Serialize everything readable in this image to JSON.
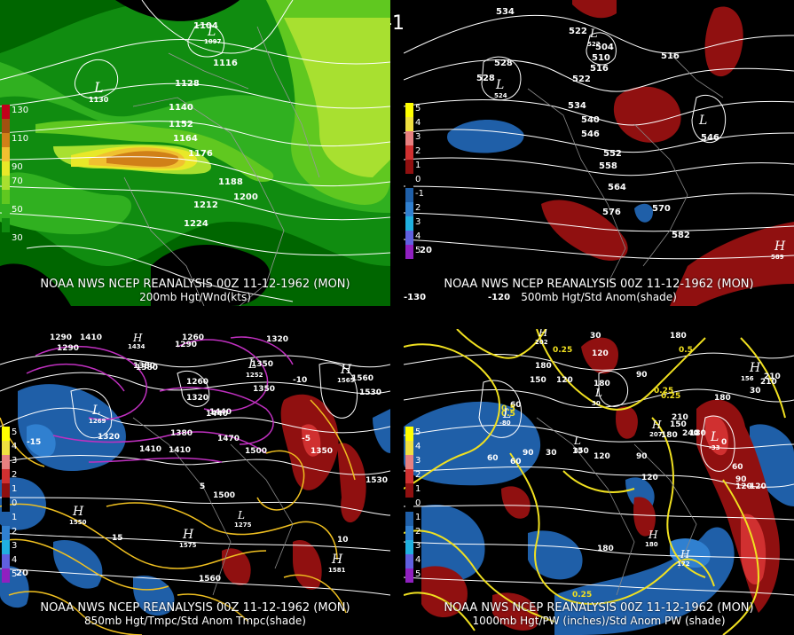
{
  "main_title": "00Z 11-12-1962 (MON)",
  "panels": [
    {
      "id": "p200",
      "caption": "NOAA NWS NCEP REANALYSIS 00Z 11-12-1962 (MON)",
      "subcaption": "200mb Hgt/Wnd(kts)",
      "legend": [
        {
          "label": "130",
          "color": "#c0001a"
        },
        {
          "label": "",
          "color": "#a05010"
        },
        {
          "label": "110",
          "color": "#d08018"
        },
        {
          "label": "",
          "color": "#f0c030"
        },
        {
          "label": "90",
          "color": "#e8e828"
        },
        {
          "label": "70",
          "color": "#a8e030"
        },
        {
          "label": "",
          "color": "#60c820"
        },
        {
          "label": "50",
          "color": "#30b020"
        },
        {
          "label": "",
          "color": "#108c10"
        },
        {
          "label": "30",
          "color": "#006600"
        }
      ],
      "contour_labels": [
        "1104",
        "1116",
        "1128",
        "1140",
        "1152",
        "1164",
        "1176",
        "1188",
        "1200",
        "1212",
        "1224"
      ],
      "lows": [
        {
          "mark": "L",
          "value": "1130"
        },
        {
          "mark": "L",
          "value": "1097"
        }
      ]
    },
    {
      "id": "p500",
      "caption": "NOAA NWS NCEP REANALYSIS 00Z 11-12-1962 (MON)",
      "subcaption": "500mb Hgt/Std Anom(shade)",
      "legend": [
        {
          "label": "5",
          "color": "#ffff00"
        },
        {
          "label": "4",
          "color": "#f0e040"
        },
        {
          "label": "3",
          "color": "#e88080"
        },
        {
          "label": "2",
          "color": "#d03030"
        },
        {
          "label": "1",
          "color": "#901010"
        },
        {
          "label": "0",
          "color": "#000000"
        },
        {
          "label": "-1",
          "color": "#1f5fa8"
        },
        {
          "label": "2",
          "color": "#3080d0"
        },
        {
          "label": "3",
          "color": "#20b0e0"
        },
        {
          "label": "4",
          "color": "#6060e0"
        },
        {
          "label": "5",
          "color": "#9020c0"
        }
      ],
      "contour_labels": [
        "534",
        "528",
        "522",
        "504",
        "510",
        "516",
        "522",
        "528",
        "534",
        "540",
        "546",
        "552",
        "558",
        "564",
        "570",
        "576",
        "582",
        "516",
        "546"
      ],
      "lows": [
        {
          "mark": "L",
          "value": "524"
        },
        {
          "mark": "L",
          "value": "522"
        },
        {
          "mark": "L",
          "value": "546"
        }
      ],
      "highs": [
        {
          "mark": "H",
          "value": "589"
        }
      ],
      "edge_labels": [
        "-130",
        "-120",
        "20"
      ]
    },
    {
      "id": "p850",
      "caption": "NOAA NWS NCEP REANALYSIS 00Z 11-12-1962 (MON)",
      "subcaption": "850mb Hgt/Tmpc/Std Anom Tmpc(shade)",
      "legend": [
        {
          "label": "5",
          "color": "#ffff00"
        },
        {
          "label": "4",
          "color": "#f0e040"
        },
        {
          "label": "3",
          "color": "#e88080"
        },
        {
          "label": "2",
          "color": "#d03030"
        },
        {
          "label": "1",
          "color": "#901010"
        },
        {
          "label": "0",
          "color": "#000000"
        },
        {
          "label": "1",
          "color": "#1f5fa8"
        },
        {
          "label": "2",
          "color": "#3080d0"
        },
        {
          "label": "3",
          "color": "#20b0e0"
        },
        {
          "label": "4",
          "color": "#6060e0"
        },
        {
          "label": "5",
          "color": "#9020c0"
        }
      ],
      "contour_labels": [
        "1290",
        "1410",
        "1290",
        "1380",
        "1260",
        "1320",
        "1350",
        "1260",
        "1320",
        "1440",
        "1290",
        "1380",
        "1410",
        "1470",
        "1500",
        "1320",
        "1350",
        "1560",
        "1530",
        "1500",
        "1530",
        "1560",
        "1410",
        "1350",
        "1380",
        "1440",
        "-5",
        "5",
        "15",
        "10",
        "-10",
        "-15"
      ],
      "lows": [
        {
          "mark": "L",
          "value": "1269"
        },
        {
          "mark": "L",
          "value": "1252"
        },
        {
          "mark": "L",
          "value": "1275"
        }
      ],
      "highs": [
        {
          "mark": "H",
          "value": "1565"
        },
        {
          "mark": "H",
          "value": "1550"
        },
        {
          "mark": "H",
          "value": "1575"
        },
        {
          "mark": "H",
          "value": "1581"
        },
        {
          "mark": "H",
          "value": "1434"
        }
      ],
      "edge_labels": [
        "20"
      ]
    },
    {
      "id": "p1000",
      "caption": "NOAA NWS NCEP REANALYSIS 00Z 11-12-1962 (MON)",
      "subcaption": "1000mb Hgt/PW (inches)/Std Anom PW (shade)",
      "legend": [
        {
          "label": "5",
          "color": "#ffff00"
        },
        {
          "label": "4",
          "color": "#f0e040"
        },
        {
          "label": "3",
          "color": "#e88080"
        },
        {
          "label": "2",
          "color": "#d03030"
        },
        {
          "label": "1",
          "color": "#901010"
        },
        {
          "label": "0",
          "color": "#000000"
        },
        {
          "label": "1",
          "color": "#1f5fa8"
        },
        {
          "label": "2",
          "color": "#3080d0"
        },
        {
          "label": "3",
          "color": "#20b0e0"
        },
        {
          "label": "4",
          "color": "#6060e0"
        },
        {
          "label": "5",
          "color": "#9020c0"
        }
      ],
      "contour_labels": [
        "30",
        "0.25",
        "120",
        "180",
        "150",
        "90",
        "180",
        "120",
        "0.25",
        "0.5",
        "210",
        "180",
        "60",
        "90",
        "30",
        "0.5",
        "120",
        "0.25",
        "60",
        "150",
        "120",
        "180",
        "210",
        "240",
        "180",
        "0",
        "60",
        "90",
        "120",
        "30",
        "180",
        "150",
        "90",
        "210",
        "0.25",
        "120",
        "180",
        "0.5",
        "60"
      ],
      "lows": [
        {
          "mark": "L",
          "value": "-80"
        },
        {
          "mark": "L",
          "value": "33"
        },
        {
          "mark": "L",
          "value": "-33"
        },
        {
          "mark": "L",
          "value": "30"
        }
      ],
      "highs": [
        {
          "mark": "H",
          "value": "202"
        },
        {
          "mark": "H",
          "value": "207"
        },
        {
          "mark": "H",
          "value": "156"
        },
        {
          "mark": "H",
          "value": "180"
        },
        {
          "mark": "H",
          "value": "172"
        }
      ]
    }
  ]
}
